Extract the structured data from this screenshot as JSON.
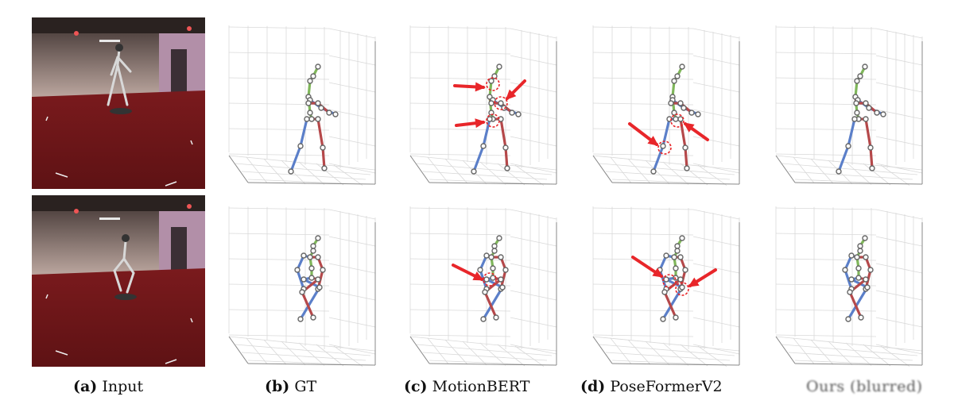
{
  "panels": [
    {
      "id": "input",
      "label": "(a)",
      "title": "Input"
    },
    {
      "id": "gt",
      "label": "(b)",
      "title": "GT"
    },
    {
      "id": "motionbert",
      "label": "(c)",
      "title": "MotionBERT"
    },
    {
      "id": "poseformerv2",
      "label": "(d)",
      "title": "PoseFormerV2"
    },
    {
      "id": "ours",
      "label": "",
      "title": "Ours (blurred)"
    }
  ],
  "colors": {
    "left_limb": "#5b7fc9",
    "right_limb": "#b5484a",
    "torso": "#7fb65a",
    "joint": "#666666",
    "error_marker": "#e8262a",
    "grid": "#d9d9d9",
    "floor": "#8c1f22",
    "wall": "#c9b6ae"
  },
  "icons": {
    "error_arrow": "red-arrow-icon",
    "error_circle": "dashed-red-circle-icon"
  }
}
